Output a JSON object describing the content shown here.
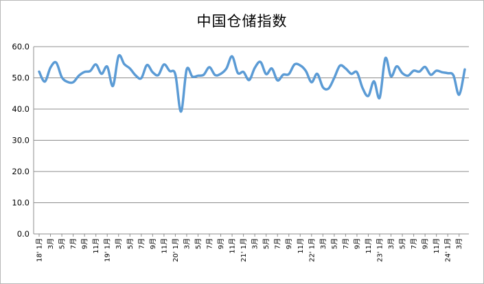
{
  "chart_data": {
    "type": "line",
    "title": "中国仓储指数",
    "xlabel": "",
    "ylabel": "",
    "ylim": [
      0,
      60
    ],
    "y_ticks": [
      "0.0",
      "10.0",
      "20.0",
      "30.0",
      "40.0",
      "50.0",
      "60.0"
    ],
    "grid": "horizontal",
    "legend": "none",
    "line_color": "#5b9bd5",
    "x_tick_labels": [
      "18' 1月",
      "3月",
      "5月",
      "7月",
      "9月",
      "11月",
      "19' 1月",
      "3月",
      "5月",
      "7月",
      "9月",
      "11月",
      "20' 1月",
      "3月",
      "5月",
      "7月",
      "9月",
      "11月",
      "21' 1月",
      "3月",
      "5月",
      "7月",
      "9月",
      "11月",
      "22' 1月",
      "3月",
      "5月",
      "7月",
      "9月",
      "11月",
      "23' 1月",
      "3月",
      "5月",
      "7月",
      "9月",
      "11月",
      "24' 1月",
      "3月"
    ],
    "series": [
      {
        "values": [
          52.0,
          48.8,
          53.3,
          54.9,
          50.2,
          48.7,
          48.6,
          50.7,
          51.9,
          52.2,
          54.3,
          51.3,
          53.6,
          47.4,
          57.0,
          54.4,
          53.0,
          50.8,
          49.9,
          54.1,
          51.8,
          50.9,
          54.3,
          52.2,
          51.1,
          39.2,
          52.7,
          50.4,
          50.7,
          51.0,
          53.4,
          50.9,
          51.3,
          53.0,
          56.9,
          51.6,
          51.9,
          49.3,
          53.2,
          55.1,
          51.2,
          53.0,
          49.2,
          51.0,
          51.2,
          54.3,
          54.0,
          52.2,
          48.6,
          51.3,
          47.0,
          46.6,
          50.0,
          53.9,
          53.0,
          51.3,
          51.8,
          46.7,
          44.2,
          48.9,
          43.6,
          56.3,
          50.5,
          53.7,
          51.5,
          50.7,
          52.3,
          52.0,
          53.5,
          51.0,
          52.3,
          51.8,
          51.5,
          50.8,
          44.6,
          52.7
        ]
      }
    ]
  }
}
